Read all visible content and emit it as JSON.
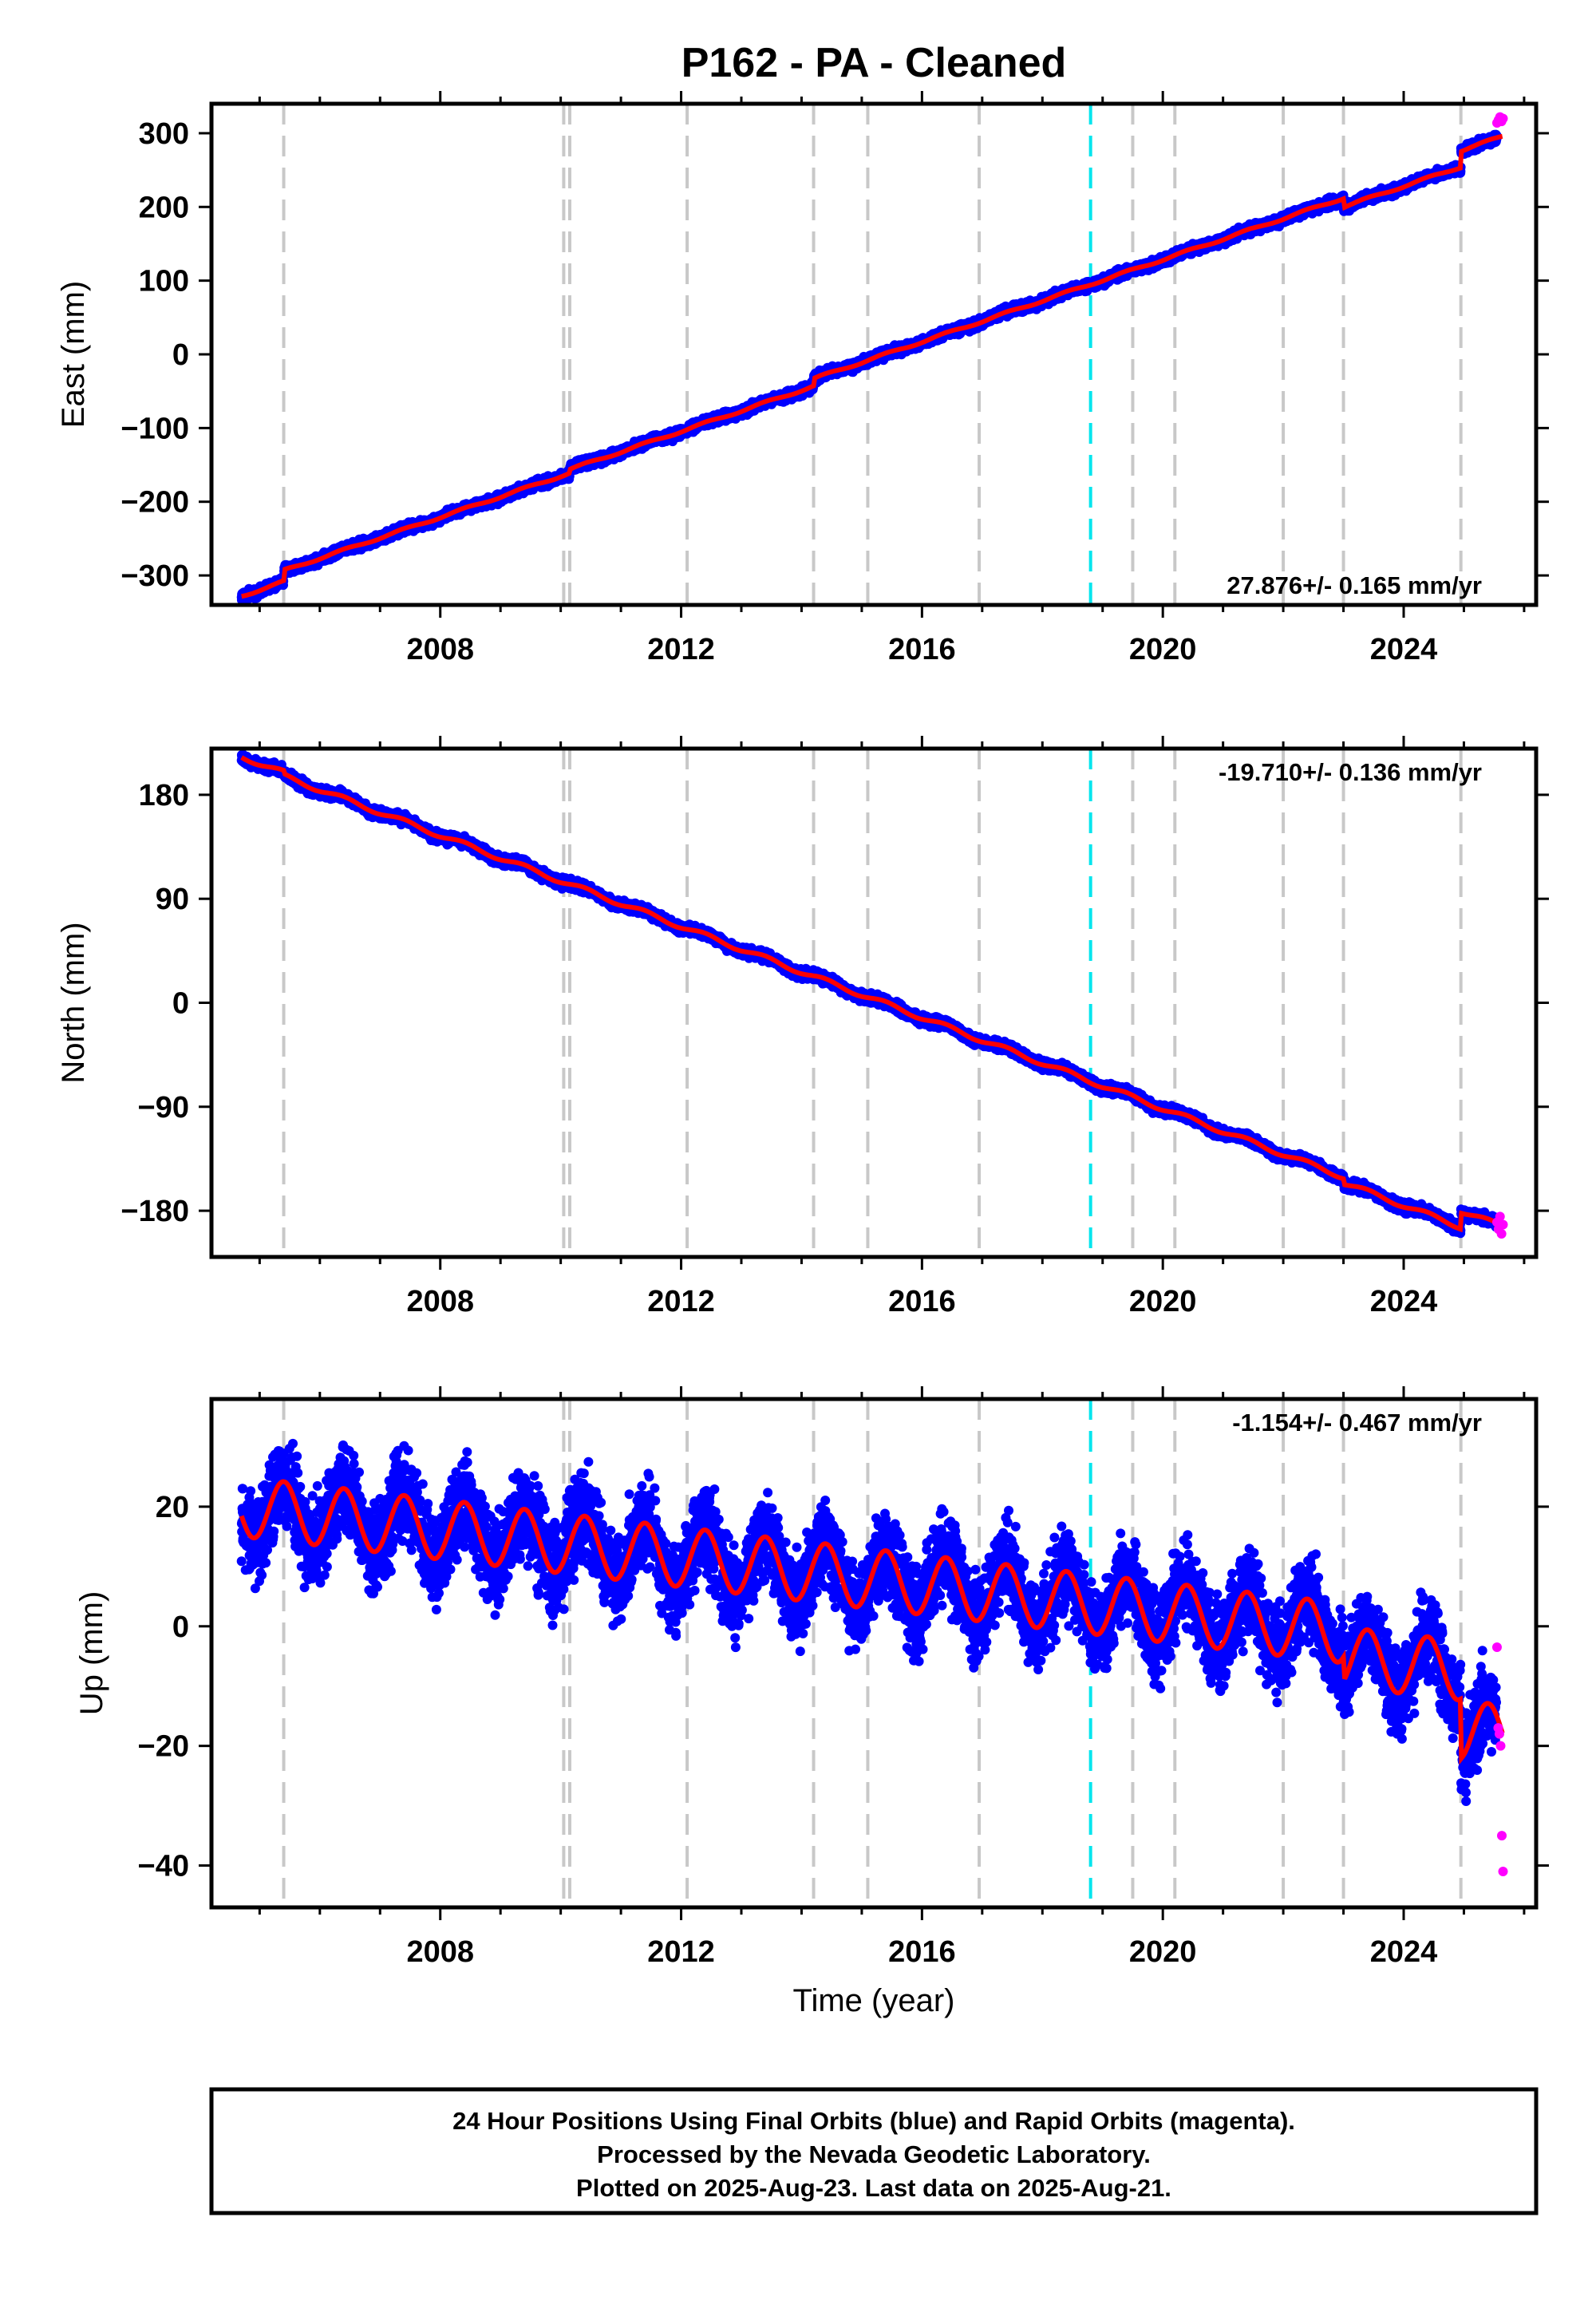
{
  "title": "P162  - PA - Cleaned",
  "xlabel": "Time (year)",
  "footer": {
    "line1": "24 Hour Positions Using Final Orbits (blue) and Rapid Orbits (magenta).",
    "line2": "Processed by the Nevada Geodetic Laboratory.",
    "line3": "Plotted on 2025-Aug-23. Last data on 2025-Aug-21."
  },
  "colors": {
    "final": "#0000ff",
    "rapid": "#ff00ff",
    "model": "#ff0000",
    "offset": "#c8c8c8",
    "equipment": "#00e5ee"
  },
  "chart_data": [
    {
      "type": "scatter",
      "component": "east",
      "ylabel": "East (mm)",
      "rate_text": "27.876+/- 0.165 mm/yr",
      "xlim": [
        2004.2,
        2026.2
      ],
      "ylim": [
        -340,
        340
      ],
      "yticks": [
        -300,
        -200,
        -100,
        0,
        100,
        200,
        300
      ],
      "ytick_labels": [
        "−300",
        "−200",
        "−100",
        "0",
        "100",
        "200",
        "300"
      ],
      "xticks": [
        2008,
        2012,
        2016,
        2020,
        2024
      ],
      "xtick_labels": [
        "2008",
        "2012",
        "2016",
        "2020",
        "2024"
      ],
      "offset_years": [
        2005.4,
        2010.05,
        2010.15,
        2012.1,
        2014.2,
        2015.1,
        2016.95,
        2019.5,
        2020.2,
        2022.0,
        2023.0,
        2024.95
      ],
      "equipment_years": [
        2018.8
      ],
      "trend": {
        "x0": 2004.7,
        "y0": -328,
        "rate": 27.876
      },
      "steps": [
        {
          "year": 2005.4,
          "dy": 15
        },
        {
          "year": 2010.15,
          "dy": 5
        },
        {
          "year": 2014.2,
          "dy": 10
        },
        {
          "year": 2023.0,
          "dy": -12
        },
        {
          "year": 2024.95,
          "dy": 22
        }
      ],
      "seasonal_amplitude": 1.5,
      "noise": 3,
      "data_end": 2025.55,
      "rapid": {
        "start": 2025.55,
        "end": 2025.65,
        "values": [
          314,
          318,
          322,
          316,
          320
        ]
      }
    },
    {
      "type": "scatter",
      "component": "north",
      "ylabel": "North (mm)",
      "rate_text": "-19.710+/- 0.136 mm/yr",
      "xlim": [
        2004.2,
        2026.2
      ],
      "ylim": [
        -220,
        220
      ],
      "yticks": [
        -180,
        -90,
        0,
        90,
        180
      ],
      "ytick_labels": [
        "−180",
        "−90",
        "0",
        "90",
        "180"
      ],
      "xticks": [
        2008,
        2012,
        2016,
        2020,
        2024
      ],
      "xtick_labels": [
        "2008",
        "2012",
        "2016",
        "2020",
        "2024"
      ],
      "offset_years": [
        2005.4,
        2010.05,
        2010.15,
        2012.1,
        2014.2,
        2015.1,
        2016.95,
        2019.5,
        2020.2,
        2022.0,
        2023.0,
        2024.95
      ],
      "equipment_years": [
        2018.8
      ],
      "trend": {
        "x0": 2004.7,
        "y0": 213,
        "rate": -19.71
      },
      "steps": [
        {
          "year": 2005.4,
          "dy": -3
        },
        {
          "year": 2023.0,
          "dy": -5
        },
        {
          "year": 2024.95,
          "dy": 14
        }
      ],
      "seasonal_amplitude": 2,
      "noise": 2,
      "data_end": 2025.55,
      "rapid": {
        "start": 2025.55,
        "end": 2025.65,
        "values": [
          -190,
          -196,
          -185,
          -200,
          -192
        ]
      }
    },
    {
      "type": "scatter",
      "component": "up",
      "ylabel": "Up (mm)",
      "rate_text": "-1.154+/- 0.467 mm/yr",
      "xlim": [
        2004.2,
        2026.2
      ],
      "ylim": [
        -47,
        38
      ],
      "yticks": [
        -40,
        -20,
        0,
        20
      ],
      "ytick_labels": [
        "−40",
        "−20",
        "0",
        "20"
      ],
      "xticks": [
        2008,
        2012,
        2016,
        2020,
        2024
      ],
      "xtick_labels": [
        "2008",
        "2012",
        "2016",
        "2020",
        "2024"
      ],
      "offset_years": [
        2005.4,
        2010.05,
        2010.15,
        2012.1,
        2014.2,
        2015.1,
        2016.95,
        2019.5,
        2020.2,
        2022.0,
        2023.0,
        2024.95
      ],
      "equipment_years": [
        2018.8
      ],
      "trend": {
        "x0": 2004.7,
        "y0": 20,
        "rate": -1.154
      },
      "steps": [
        {
          "year": 2023.0,
          "dy": -4
        },
        {
          "year": 2024.95,
          "dy": -10
        }
      ],
      "seasonal_amplitude": 5,
      "noise": 3.5,
      "data_end": 2025.55,
      "rapid": {
        "start": 2025.55,
        "end": 2025.65,
        "values": [
          -3.5,
          -17,
          -18,
          -20,
          -35,
          -41
        ]
      }
    }
  ]
}
